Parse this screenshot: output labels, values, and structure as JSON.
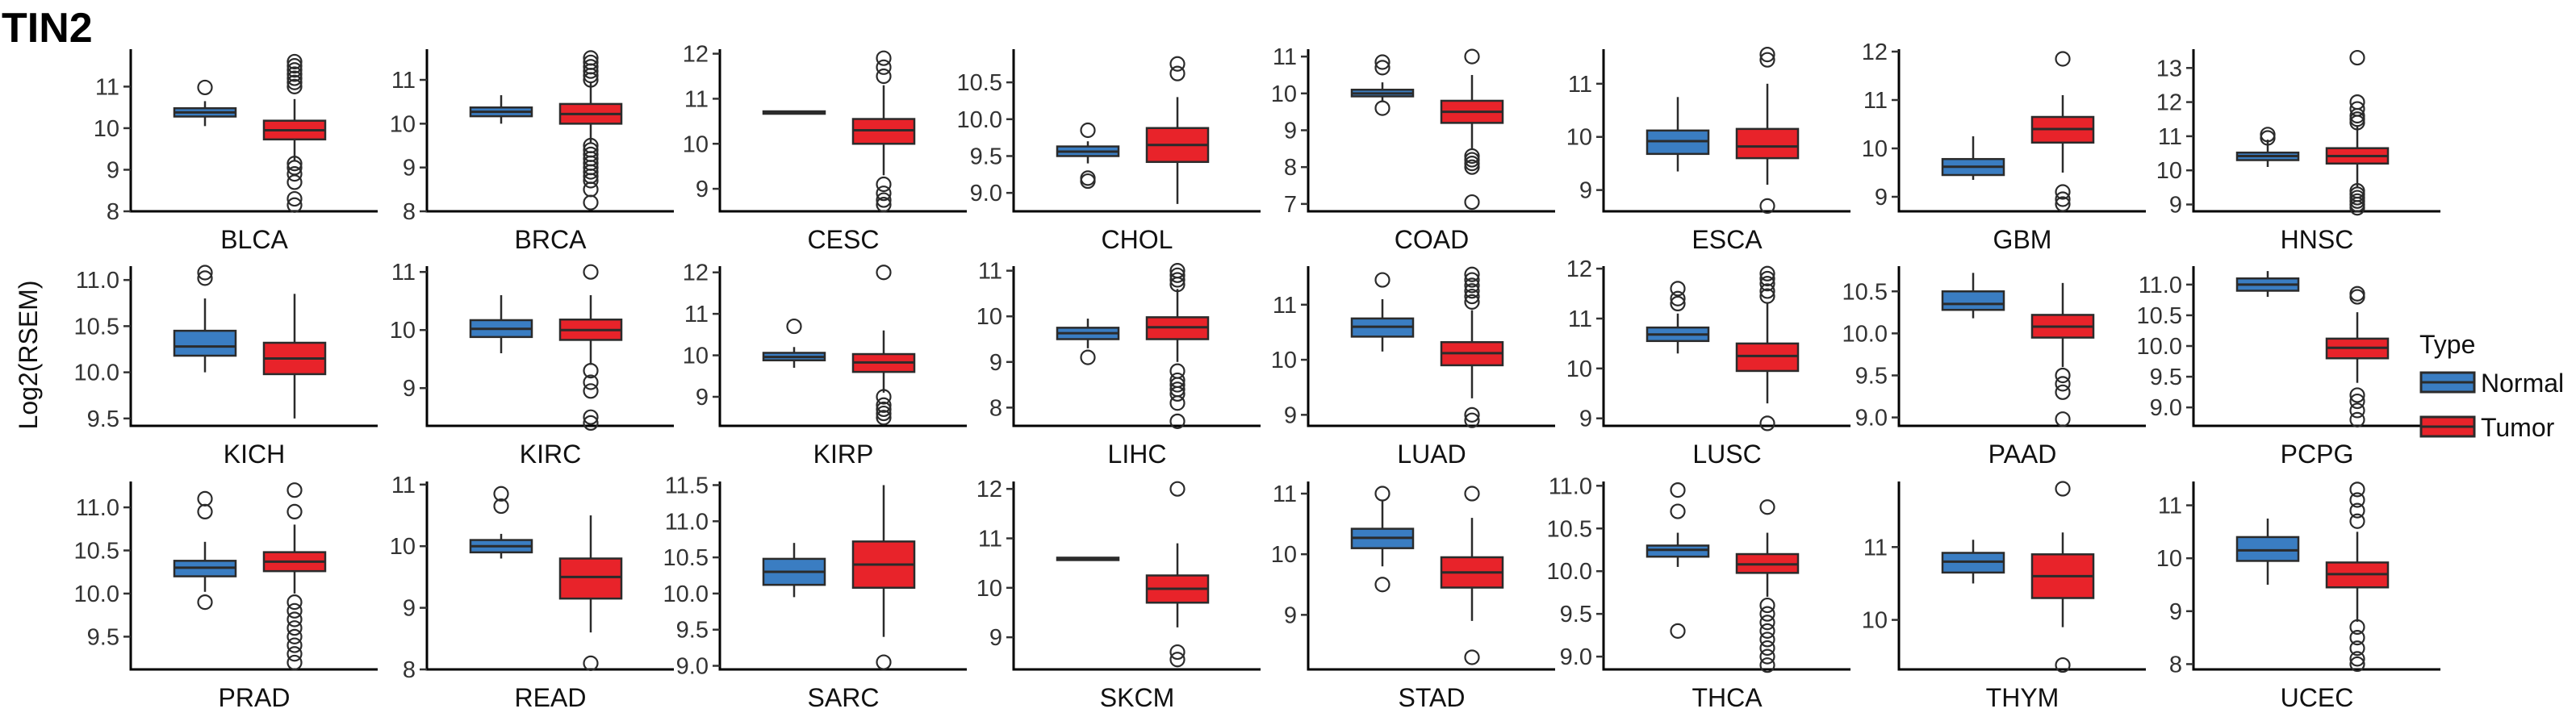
{
  "figure": {
    "gene": "TIN2",
    "ylabel": "Log2(RSEM)",
    "legend": {
      "title": "Type",
      "placement": "right",
      "entries": [
        "Normal",
        "Tumor"
      ]
    },
    "colors": {
      "Normal": "#3a7dc2",
      "Tumor": "#e8232a",
      "outline": "#2b2b2b",
      "axis": "#000000"
    }
  },
  "chart_data": [
    {
      "type": "box",
      "label": "BLCA",
      "ylim": [
        8,
        11.9
      ],
      "yticks": [
        8,
        9,
        10,
        11
      ],
      "boxes": [
        {
          "name": "Normal",
          "q1": 10.28,
          "median": 10.38,
          "q3": 10.48,
          "lo": 10.05,
          "hi": 10.65,
          "outliers": [
            10.98
          ]
        },
        {
          "name": "Tumor",
          "q1": 9.73,
          "median": 9.95,
          "q3": 10.18,
          "lo": 9.2,
          "hi": 10.7,
          "outliers": [
            11.6,
            11.5,
            11.4,
            11.3,
            11.2,
            11.1,
            11.0,
            9.15,
            9.05,
            8.9,
            8.7,
            8.3,
            8.15
          ]
        }
      ]
    },
    {
      "type": "box",
      "label": "BRCA",
      "ylim": [
        8,
        11.7
      ],
      "yticks": [
        8,
        9,
        10,
        11
      ],
      "boxes": [
        {
          "name": "Normal",
          "q1": 10.17,
          "median": 10.27,
          "q3": 10.37,
          "lo": 10.0,
          "hi": 10.65,
          "outliers": []
        },
        {
          "name": "Tumor",
          "q1": 10.0,
          "median": 10.22,
          "q3": 10.45,
          "lo": 9.55,
          "hi": 10.95,
          "outliers": [
            11.5,
            11.4,
            11.3,
            11.2,
            11.1,
            11.0,
            9.5,
            9.4,
            9.3,
            9.2,
            9.1,
            9.0,
            8.9,
            8.8,
            8.7,
            8.5,
            8.2
          ]
        }
      ]
    },
    {
      "type": "box",
      "label": "CESC",
      "ylim": [
        8.5,
        12.1
      ],
      "yticks": [
        9,
        10,
        11,
        12
      ],
      "boxes": [
        {
          "name": "Normal",
          "q1": 10.68,
          "median": 10.7,
          "q3": 10.72,
          "lo": 10.68,
          "hi": 10.72,
          "outliers": []
        },
        {
          "name": "Tumor",
          "q1": 10.0,
          "median": 10.3,
          "q3": 10.55,
          "lo": 9.3,
          "hi": 11.3,
          "outliers": [
            11.9,
            11.7,
            11.5,
            9.1,
            8.9,
            8.75,
            8.65
          ]
        }
      ]
    },
    {
      "type": "box",
      "label": "CHOL",
      "ylim": [
        8.75,
        10.95
      ],
      "yticks": [
        9.0,
        9.5,
        10.0,
        10.5
      ],
      "boxes": [
        {
          "name": "Normal",
          "q1": 9.5,
          "median": 9.56,
          "q3": 9.63,
          "lo": 9.4,
          "hi": 9.7,
          "outliers": [
            9.85,
            9.2,
            9.16
          ]
        },
        {
          "name": "Tumor",
          "q1": 9.42,
          "median": 9.65,
          "q3": 9.88,
          "lo": 8.85,
          "hi": 10.3,
          "outliers": [
            10.75,
            10.62
          ]
        }
      ]
    },
    {
      "type": "box",
      "label": "COAD",
      "ylim": [
        6.8,
        11.2
      ],
      "yticks": [
        7,
        8,
        9,
        10,
        11
      ],
      "boxes": [
        {
          "name": "Normal",
          "q1": 9.92,
          "median": 10.0,
          "q3": 10.1,
          "lo": 9.8,
          "hi": 10.3,
          "outliers": [
            10.85,
            10.7,
            9.6
          ]
        },
        {
          "name": "Tumor",
          "q1": 9.2,
          "median": 9.5,
          "q3": 9.8,
          "lo": 8.5,
          "hi": 10.5,
          "outliers": [
            11.0,
            8.3,
            8.2,
            8.1,
            8.0,
            7.05
          ]
        }
      ]
    },
    {
      "type": "box",
      "label": "ESCA",
      "ylim": [
        8.6,
        11.65
      ],
      "yticks": [
        9,
        10,
        11
      ],
      "boxes": [
        {
          "name": "Normal",
          "q1": 9.68,
          "median": 9.92,
          "q3": 10.12,
          "lo": 9.35,
          "hi": 10.75,
          "outliers": []
        },
        {
          "name": "Tumor",
          "q1": 9.6,
          "median": 9.82,
          "q3": 10.15,
          "lo": 9.1,
          "hi": 11.0,
          "outliers": [
            11.55,
            11.45,
            8.7
          ]
        }
      ]
    },
    {
      "type": "box",
      "label": "GBM",
      "ylim": [
        8.7,
        12.05
      ],
      "yticks": [
        9,
        10,
        11,
        12
      ],
      "boxes": [
        {
          "name": "Normal",
          "q1": 9.45,
          "median": 9.62,
          "q3": 9.78,
          "lo": 9.35,
          "hi": 10.25,
          "outliers": []
        },
        {
          "name": "Tumor",
          "q1": 10.12,
          "median": 10.4,
          "q3": 10.65,
          "lo": 9.5,
          "hi": 11.1,
          "outliers": [
            11.85,
            9.1,
            8.95,
            8.85
          ]
        }
      ]
    },
    {
      "type": "box",
      "label": "HNSC",
      "ylim": [
        8.8,
        13.55
      ],
      "yticks": [
        9,
        10,
        11,
        12,
        13
      ],
      "boxes": [
        {
          "name": "Normal",
          "q1": 10.3,
          "median": 10.42,
          "q3": 10.52,
          "lo": 10.1,
          "hi": 10.9,
          "outliers": [
            11.05,
            10.95
          ]
        },
        {
          "name": "Tumor",
          "q1": 10.2,
          "median": 10.42,
          "q3": 10.65,
          "lo": 9.5,
          "hi": 11.3,
          "outliers": [
            13.3,
            12.0,
            11.8,
            11.6,
            11.5,
            11.4,
            9.4,
            9.3,
            9.2,
            9.1,
            9.0,
            8.9
          ]
        }
      ]
    },
    {
      "type": "box",
      "label": "KICH",
      "ylim": [
        9.42,
        11.15
      ],
      "yticks": [
        9.5,
        10.0,
        10.5,
        11.0
      ],
      "boxes": [
        {
          "name": "Normal",
          "q1": 10.18,
          "median": 10.28,
          "q3": 10.45,
          "lo": 10.0,
          "hi": 10.8,
          "outliers": [
            11.08,
            11.02
          ]
        },
        {
          "name": "Tumor",
          "q1": 9.98,
          "median": 10.15,
          "q3": 10.32,
          "lo": 9.5,
          "hi": 10.85,
          "outliers": []
        }
      ]
    },
    {
      "type": "box",
      "label": "KIRC",
      "ylim": [
        8.35,
        11.1
      ],
      "yticks": [
        9,
        10,
        11
      ],
      "boxes": [
        {
          "name": "Normal",
          "q1": 9.88,
          "median": 10.02,
          "q3": 10.17,
          "lo": 9.6,
          "hi": 10.6,
          "outliers": []
        },
        {
          "name": "Tumor",
          "q1": 9.83,
          "median": 10.0,
          "q3": 10.18,
          "lo": 9.4,
          "hi": 10.6,
          "outliers": [
            11.0,
            9.3,
            9.1,
            8.95,
            8.5,
            8.4
          ]
        }
      ]
    },
    {
      "type": "box",
      "label": "KIRP",
      "ylim": [
        8.3,
        12.15
      ],
      "yticks": [
        9,
        10,
        11,
        12
      ],
      "boxes": [
        {
          "name": "Normal",
          "q1": 9.88,
          "median": 9.96,
          "q3": 10.06,
          "lo": 9.7,
          "hi": 10.2,
          "outliers": [
            10.7
          ]
        },
        {
          "name": "Tumor",
          "q1": 9.6,
          "median": 9.83,
          "q3": 10.03,
          "lo": 9.1,
          "hi": 10.6,
          "outliers": [
            12.0,
            9.0,
            8.8,
            8.7,
            8.6,
            8.5
          ]
        }
      ]
    },
    {
      "type": "box",
      "label": "LIHC",
      "ylim": [
        7.6,
        11.1
      ],
      "yticks": [
        8,
        9,
        10,
        11
      ],
      "boxes": [
        {
          "name": "Normal",
          "q1": 9.5,
          "median": 9.63,
          "q3": 9.75,
          "lo": 9.3,
          "hi": 9.95,
          "outliers": [
            9.1
          ]
        },
        {
          "name": "Tumor",
          "q1": 9.5,
          "median": 9.76,
          "q3": 9.98,
          "lo": 9.0,
          "hi": 10.6,
          "outliers": [
            11.0,
            10.9,
            10.8,
            10.7,
            8.8,
            8.6,
            8.5,
            8.4,
            8.3,
            8.1,
            7.7
          ]
        }
      ]
    },
    {
      "type": "box",
      "label": "LUAD",
      "ylim": [
        8.8,
        11.7
      ],
      "yticks": [
        9,
        10,
        11
      ],
      "boxes": [
        {
          "name": "Normal",
          "q1": 10.42,
          "median": 10.6,
          "q3": 10.75,
          "lo": 10.15,
          "hi": 11.1,
          "outliers": [
            11.45
          ]
        },
        {
          "name": "Tumor",
          "q1": 9.9,
          "median": 10.12,
          "q3": 10.32,
          "lo": 9.3,
          "hi": 10.9,
          "outliers": [
            11.55,
            11.45,
            11.35,
            11.25,
            11.15,
            11.05,
            9.0,
            8.9
          ]
        }
      ]
    },
    {
      "type": "box",
      "label": "LUSC",
      "ylim": [
        8.85,
        12.05
      ],
      "yticks": [
        9,
        10,
        11,
        12
      ],
      "boxes": [
        {
          "name": "Normal",
          "q1": 10.55,
          "median": 10.68,
          "q3": 10.82,
          "lo": 10.3,
          "hi": 11.1,
          "outliers": [
            11.6,
            11.4,
            11.3
          ]
        },
        {
          "name": "Tumor",
          "q1": 9.95,
          "median": 10.25,
          "q3": 10.5,
          "lo": 9.3,
          "hi": 11.3,
          "outliers": [
            11.9,
            11.8,
            11.7,
            11.55,
            11.45,
            8.9
          ]
        }
      ]
    },
    {
      "type": "box",
      "label": "PAAD",
      "ylim": [
        8.9,
        10.8
      ],
      "yticks": [
        9.0,
        9.5,
        10.0,
        10.5
      ],
      "boxes": [
        {
          "name": "Normal",
          "q1": 10.28,
          "median": 10.35,
          "q3": 10.5,
          "lo": 10.18,
          "hi": 10.72,
          "outliers": []
        },
        {
          "name": "Tumor",
          "q1": 9.95,
          "median": 10.08,
          "q3": 10.22,
          "lo": 9.6,
          "hi": 10.6,
          "outliers": [
            9.5,
            9.4,
            9.3,
            8.98
          ]
        }
      ]
    },
    {
      "type": "box",
      "label": "PCPG",
      "ylim": [
        8.7,
        11.3
      ],
      "yticks": [
        9.0,
        9.5,
        10.0,
        10.5,
        11.0
      ],
      "boxes": [
        {
          "name": "Normal",
          "q1": 10.9,
          "median": 11.0,
          "q3": 11.1,
          "lo": 10.8,
          "hi": 11.22,
          "outliers": []
        },
        {
          "name": "Tumor",
          "q1": 9.8,
          "median": 9.97,
          "q3": 10.12,
          "lo": 9.4,
          "hi": 10.55,
          "outliers": [
            10.85,
            10.8,
            9.2,
            9.1,
            8.95,
            8.8
          ]
        }
      ]
    },
    {
      "type": "box",
      "label": "PRAD",
      "ylim": [
        9.12,
        11.3
      ],
      "yticks": [
        9.5,
        10.0,
        10.5,
        11.0
      ],
      "boxes": [
        {
          "name": "Normal",
          "q1": 10.2,
          "median": 10.3,
          "q3": 10.38,
          "lo": 10.02,
          "hi": 10.6,
          "outliers": [
            11.1,
            10.95,
            9.9
          ]
        },
        {
          "name": "Tumor",
          "q1": 10.26,
          "median": 10.37,
          "q3": 10.48,
          "lo": 10.0,
          "hi": 10.8,
          "outliers": [
            11.2,
            10.95,
            9.9,
            9.8,
            9.7,
            9.6,
            9.5,
            9.4,
            9.3,
            9.2
          ]
        }
      ]
    },
    {
      "type": "box",
      "label": "READ",
      "ylim": [
        8,
        11.05
      ],
      "yticks": [
        8,
        9,
        10,
        11
      ],
      "boxes": [
        {
          "name": "Normal",
          "q1": 9.9,
          "median": 10.0,
          "q3": 10.1,
          "lo": 9.8,
          "hi": 10.2,
          "outliers": [
            10.85,
            10.65
          ]
        },
        {
          "name": "Tumor",
          "q1": 9.15,
          "median": 9.5,
          "q3": 9.8,
          "lo": 8.6,
          "hi": 10.5,
          "outliers": [
            8.1
          ]
        }
      ]
    },
    {
      "type": "box",
      "label": "SARC",
      "ylim": [
        8.95,
        11.55
      ],
      "yticks": [
        9.0,
        9.5,
        10.0,
        10.5,
        11.0,
        11.5
      ],
      "boxes": [
        {
          "name": "Normal",
          "q1": 10.12,
          "median": 10.3,
          "q3": 10.48,
          "lo": 9.95,
          "hi": 10.7,
          "outliers": []
        },
        {
          "name": "Tumor",
          "q1": 10.08,
          "median": 10.4,
          "q3": 10.72,
          "lo": 9.4,
          "hi": 11.5,
          "outliers": [
            9.05
          ]
        }
      ]
    },
    {
      "type": "box",
      "label": "SKCM",
      "ylim": [
        8.35,
        12.15
      ],
      "yticks": [
        9,
        10,
        11,
        12
      ],
      "boxes": [
        {
          "name": "Normal",
          "q1": 10.59,
          "median": 10.6,
          "q3": 10.61,
          "lo": 10.59,
          "hi": 10.61,
          "outliers": []
        },
        {
          "name": "Tumor",
          "q1": 9.7,
          "median": 9.98,
          "q3": 10.25,
          "lo": 9.2,
          "hi": 10.9,
          "outliers": [
            12.0,
            8.7,
            8.55
          ]
        }
      ]
    },
    {
      "type": "box",
      "label": "STAD",
      "ylim": [
        8.1,
        11.2
      ],
      "yticks": [
        9,
        10,
        11
      ],
      "boxes": [
        {
          "name": "Normal",
          "q1": 10.1,
          "median": 10.27,
          "q3": 10.42,
          "lo": 9.8,
          "hi": 10.9,
          "outliers": [
            11.0,
            9.5
          ]
        },
        {
          "name": "Tumor",
          "q1": 9.45,
          "median": 9.7,
          "q3": 9.95,
          "lo": 8.9,
          "hi": 10.6,
          "outliers": [
            11.0,
            8.3
          ]
        }
      ]
    },
    {
      "type": "box",
      "label": "THCA",
      "ylim": [
        8.85,
        11.05
      ],
      "yticks": [
        9.0,
        9.5,
        10.0,
        10.5,
        11.0
      ],
      "boxes": [
        {
          "name": "Normal",
          "q1": 10.17,
          "median": 10.25,
          "q3": 10.3,
          "lo": 10.05,
          "hi": 10.45,
          "outliers": [
            10.95,
            10.7,
            9.3
          ]
        },
        {
          "name": "Tumor",
          "q1": 9.98,
          "median": 10.08,
          "q3": 10.2,
          "lo": 9.7,
          "hi": 10.45,
          "outliers": [
            10.75,
            9.6,
            9.5,
            9.4,
            9.3,
            9.2,
            9.1,
            9.0,
            8.9
          ]
        }
      ]
    },
    {
      "type": "box",
      "label": "THYM",
      "ylim": [
        9.32,
        11.9
      ],
      "yticks": [
        10,
        11
      ],
      "boxes": [
        {
          "name": "Normal",
          "q1": 10.65,
          "median": 10.8,
          "q3": 10.92,
          "lo": 10.5,
          "hi": 11.1,
          "outliers": []
        },
        {
          "name": "Tumor",
          "q1": 10.3,
          "median": 10.6,
          "q3": 10.9,
          "lo": 9.9,
          "hi": 11.2,
          "outliers": [
            11.8,
            9.38
          ]
        }
      ]
    },
    {
      "type": "box",
      "label": "UCEC",
      "ylim": [
        7.9,
        11.45
      ],
      "yticks": [
        8,
        9,
        10,
        11
      ],
      "boxes": [
        {
          "name": "Normal",
          "q1": 9.95,
          "median": 10.15,
          "q3": 10.4,
          "lo": 9.5,
          "hi": 10.75,
          "outliers": []
        },
        {
          "name": "Tumor",
          "q1": 9.45,
          "median": 9.7,
          "q3": 9.92,
          "lo": 8.8,
          "hi": 10.5,
          "outliers": [
            11.3,
            11.1,
            10.9,
            10.7,
            8.7,
            8.5,
            8.3,
            8.1,
            8.0
          ]
        }
      ]
    }
  ]
}
